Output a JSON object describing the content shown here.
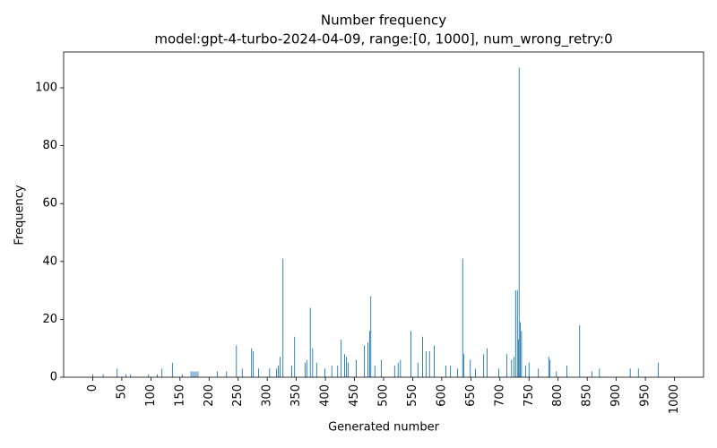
{
  "chart_data": {
    "type": "bar",
    "title": "Number frequency",
    "subtitle": "model:gpt-4-turbo-2024-04-09, range:[0, 1000], num_wrong_retry:0",
    "xlabel": "Generated number",
    "ylabel": "Frequency",
    "color": "#1f77b4",
    "x": [
      0,
      18,
      42,
      57,
      65,
      96,
      111,
      119,
      137,
      154,
      169,
      172,
      175,
      178,
      181,
      214,
      230,
      247,
      257,
      273,
      276,
      285,
      304,
      316,
      319,
      322,
      327,
      342,
      347,
      365,
      368,
      374,
      378,
      385,
      399,
      411,
      421,
      427,
      433,
      436,
      439,
      453,
      467,
      473,
      476,
      478,
      485,
      496,
      519,
      525,
      529,
      547,
      559,
      567,
      573,
      579,
      587,
      607,
      615,
      627,
      636,
      638,
      649,
      658,
      672,
      678,
      698,
      712,
      720,
      724,
      727,
      730,
      732,
      733,
      735,
      737,
      744,
      750,
      766,
      784,
      786,
      797,
      815,
      837,
      858,
      871,
      924,
      938,
      972
    ],
    "values": [
      1,
      1,
      3,
      1,
      1,
      1,
      1,
      3,
      5,
      1,
      2,
      2,
      2,
      2,
      2,
      2,
      2,
      11,
      3,
      10,
      9,
      3,
      3,
      3,
      4,
      7,
      41,
      4,
      14,
      5,
      6,
      24,
      10,
      5,
      3,
      4,
      4,
      13,
      8,
      7,
      5,
      6,
      11,
      12,
      16,
      28,
      4,
      6,
      4,
      5,
      6,
      16,
      5,
      14,
      9,
      9,
      11,
      4,
      4,
      3,
      41,
      8,
      6,
      3,
      8,
      10,
      3,
      8,
      6,
      7,
      30,
      30,
      13,
      107,
      19,
      16,
      4,
      5,
      3,
      7,
      6,
      2,
      4,
      18,
      2,
      3,
      3,
      3,
      5
    ],
    "xlim": [
      -50,
      1050
    ],
    "ylim": [
      0,
      112.4
    ],
    "xticks": [
      0,
      50,
      100,
      150,
      200,
      250,
      300,
      350,
      400,
      450,
      500,
      550,
      600,
      650,
      700,
      750,
      800,
      850,
      900,
      950,
      1000
    ],
    "yticks": [
      0,
      20,
      40,
      60,
      80,
      100
    ]
  }
}
